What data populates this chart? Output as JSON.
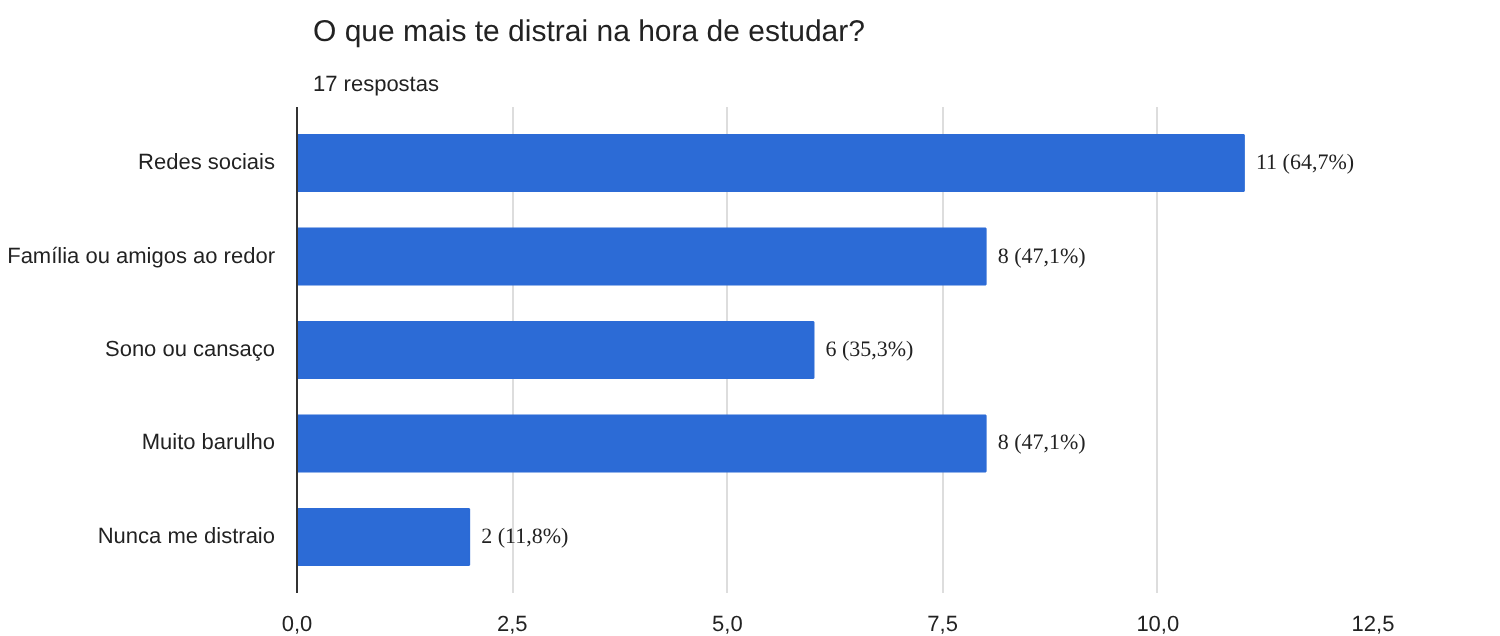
{
  "chart_data": {
    "type": "bar",
    "orientation": "horizontal",
    "title": "O que mais te distrai na hora de estudar?",
    "subtitle": "17 respostas",
    "categories": [
      "Redes sociais",
      "Família ou amigos ao redor",
      "Sono ou cansaço",
      "Muito barulho",
      "Nunca me distraio"
    ],
    "values": [
      11,
      8,
      6,
      8,
      2
    ],
    "value_labels": [
      "11 (64,7%)",
      "8 (47,1%)",
      "6 (35,3%)",
      "8 (47,1%)",
      "2 (11,8%)"
    ],
    "color": "#2c6bd6",
    "xlim": [
      0,
      12.5
    ],
    "xticks": [
      {
        "value": 0,
        "label": "0,0"
      },
      {
        "value": 2.5,
        "label": "2,5"
      },
      {
        "value": 5,
        "label": "5,0"
      },
      {
        "value": 7.5,
        "label": "7,5"
      },
      {
        "value": 10,
        "label": "10,0"
      },
      {
        "value": 12.5,
        "label": "12,5"
      }
    ],
    "grid": "x"
  }
}
